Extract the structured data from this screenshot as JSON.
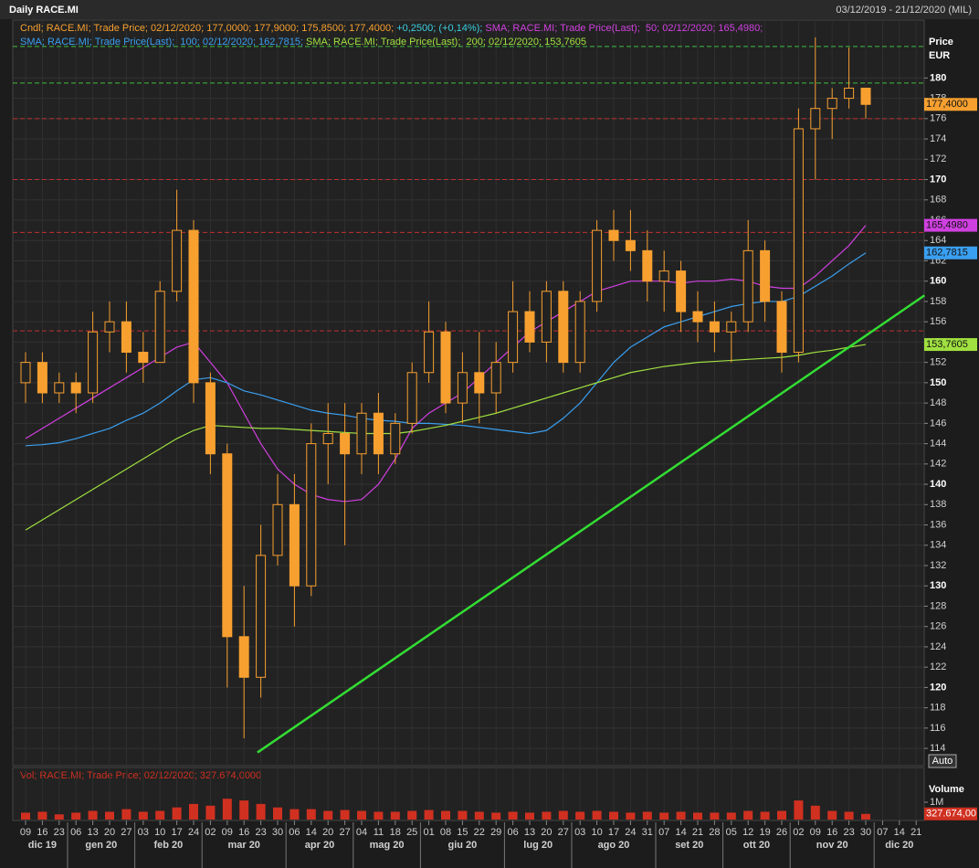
{
  "chart_data": {
    "type": "candlestick",
    "title": "Daily RACE.MI",
    "range_text": "03/12/2019 - 21/12/2020 (MIL)",
    "y_axis_label": "Price",
    "y_axis_unit": "EUR",
    "scale_button": "Auto",
    "legend": [
      [
        {
          "text": "Cndl; RACE.MI; Trade Price; 02/12/2020; 177,0000; 177,9000; 175,8500; 177,4000; ",
          "color": "#f7a030"
        },
        {
          "text": "+0,2500; (+0,14%);",
          "color": "#39d0e0"
        },
        {
          "text": " SMA; RACE.MI; Trade Price(Last);  50; 02/12/2020; 165,4980;",
          "color": "#d040e0"
        }
      ],
      [
        {
          "text": "SMA; RACE.MI; Trade Price(Last);  100; 02/12/2020; 162,7815;",
          "color": "#3a9ff0"
        },
        {
          "text": " SMA; RACE.MI; Trade Price(Last);  200; 02/12/2020; 153,7605",
          "color": "#a0e040"
        }
      ]
    ],
    "categories": [
      "09",
      "16",
      "23",
      "06",
      "13",
      "20",
      "27",
      "03",
      "10",
      "17",
      "24",
      "02",
      "09",
      "16",
      "23",
      "30",
      "06",
      "14",
      "20",
      "27",
      "04",
      "11",
      "18",
      "25",
      "01",
      "08",
      "15",
      "22",
      "29",
      "06",
      "13",
      "20",
      "27",
      "03",
      "10",
      "17",
      "24",
      "31",
      "07",
      "14",
      "21",
      "28",
      "05",
      "12",
      "19",
      "26",
      "02",
      "09",
      "16",
      "23",
      "30",
      "07",
      "14",
      "21"
    ],
    "months": [
      "dic 19",
      "gen 20",
      "feb 20",
      "mar 20",
      "apr 20",
      "mag 20",
      "giu 20",
      "lug 20",
      "ago 20",
      "set 20",
      "ott 20",
      "nov 20",
      "dic 20"
    ],
    "open": [
      150,
      152,
      149,
      150,
      149,
      155,
      156,
      153,
      152,
      159,
      165,
      150,
      143,
      125,
      121,
      133,
      138,
      130,
      144,
      145,
      143,
      147,
      143,
      146,
      151,
      155,
      148,
      151,
      149,
      152,
      157,
      154,
      159,
      152,
      158,
      165,
      164,
      163,
      160,
      161,
      157,
      156,
      155,
      156,
      163,
      158,
      153,
      175,
      177,
      178,
      179,
      null,
      null,
      null
    ],
    "high": [
      153,
      153,
      151,
      151,
      157,
      158,
      158,
      155,
      160,
      169,
      166,
      151,
      144,
      130,
      136,
      141,
      141,
      146,
      148,
      148,
      148,
      149,
      147,
      152,
      158,
      156,
      153,
      155,
      154,
      160,
      159,
      160,
      160,
      159,
      166,
      167,
      167,
      165,
      163,
      162,
      159,
      158,
      157,
      166,
      164,
      159,
      177,
      184,
      179,
      183,
      179,
      null,
      null,
      null
    ],
    "low": [
      148,
      148,
      148,
      147,
      148,
      153,
      151,
      150,
      152,
      158,
      148,
      141,
      120,
      115,
      119,
      132,
      126,
      129,
      140,
      134,
      141,
      141,
      142,
      145,
      150,
      147,
      146,
      146,
      147,
      151,
      153,
      152,
      151,
      151,
      157,
      162,
      161,
      158,
      157,
      155,
      154,
      153,
      152,
      155,
      156,
      151,
      152,
      170,
      174,
      177,
      176,
      null,
      null,
      null
    ],
    "close": [
      152,
      149,
      150,
      149,
      155,
      156,
      153,
      152,
      159,
      165,
      150,
      143,
      125,
      121,
      133,
      138,
      130,
      144,
      145,
      143,
      147,
      143,
      146,
      151,
      155,
      148,
      151,
      149,
      152,
      157,
      154,
      159,
      152,
      158,
      165,
      164,
      163,
      160,
      161,
      157,
      156,
      155,
      156,
      163,
      158,
      153,
      175,
      177,
      178,
      179,
      177.4,
      null,
      null,
      null
    ],
    "candle_color": "#f7a030",
    "series": [
      {
        "name": "SMA 50",
        "color": "#d040e0",
        "values": [
          144.5,
          145.5,
          146.5,
          147.5,
          148.5,
          149.5,
          150.5,
          151.5,
          152.5,
          153.5,
          154,
          152,
          150,
          147,
          144,
          141.5,
          140,
          139,
          138.5,
          138.3,
          138.5,
          140,
          142.5,
          145.5,
          147,
          148,
          149,
          150.5,
          152,
          153.5,
          155,
          156,
          157,
          158,
          159,
          159.5,
          160,
          160,
          160,
          159.8,
          160,
          160,
          160.2,
          160,
          159.5,
          159.3,
          159.3,
          160.5,
          162,
          163.5,
          165.498,
          null,
          null,
          null
        ]
      },
      {
        "name": "SMA 100",
        "color": "#3a9ff0",
        "values": [
          143.8,
          143.9,
          144.1,
          144.5,
          145,
          145.5,
          146.3,
          147,
          148,
          149.2,
          150.3,
          150.5,
          150,
          149.2,
          148.8,
          148.3,
          147.8,
          147.3,
          147,
          146.8,
          146.5,
          146.3,
          146.2,
          146,
          146,
          145.9,
          145.8,
          145.6,
          145.4,
          145.2,
          145,
          145.3,
          146.5,
          148,
          150,
          152,
          153.5,
          154.5,
          155.5,
          156,
          156.5,
          157,
          157.5,
          157.8,
          158,
          158,
          158.5,
          159.5,
          160.5,
          161.7,
          162.7815,
          null,
          null,
          null
        ]
      },
      {
        "name": "SMA 200",
        "color": "#a0e040",
        "values": [
          135.5,
          136.5,
          137.5,
          138.5,
          139.5,
          140.5,
          141.5,
          142.5,
          143.5,
          144.5,
          145.3,
          145.8,
          145.7,
          145.6,
          145.5,
          145.5,
          145.4,
          145.3,
          145.2,
          145.1,
          145,
          145,
          145,
          145.2,
          145.5,
          145.8,
          146.2,
          146.6,
          147,
          147.5,
          148,
          148.5,
          149,
          149.5,
          150,
          150.5,
          151,
          151.3,
          151.6,
          151.8,
          152,
          152.1,
          152.2,
          152.3,
          152.4,
          152.5,
          152.7,
          153,
          153.2,
          153.5,
          153.7605,
          null,
          null,
          null
        ]
      }
    ],
    "last_values": [
      {
        "value": 177.4,
        "label": "177,4000",
        "color": "#f7a030"
      },
      {
        "value": 165.498,
        "label": "165,4980",
        "color": "#d040e0"
      },
      {
        "value": 162.7815,
        "label": "162,7815",
        "color": "#3a9ff0"
      },
      {
        "value": 153.7605,
        "label": "153,7605",
        "color": "#a0e040"
      }
    ],
    "reference_lines": [
      {
        "value": 183.1,
        "color": "#3fbf3f"
      },
      {
        "value": 179.5,
        "color": "#3fbf3f"
      },
      {
        "value": 176,
        "color": "#c03030"
      },
      {
        "value": 170,
        "color": "#c03030"
      },
      {
        "value": 164.8,
        "color": "#c03030"
      },
      {
        "value": 155.1,
        "color": "#c03030"
      }
    ],
    "trend_line": {
      "x": [
        13.8,
        53.5
      ],
      "y": [
        113.6,
        158.6
      ],
      "color": "#33dd33"
    },
    "ylim": [
      112.3,
      185.7
    ],
    "yticks": [
      114,
      116,
      118,
      120,
      122,
      124,
      126,
      128,
      130,
      132,
      134,
      136,
      138,
      140,
      142,
      144,
      146,
      148,
      150,
      152,
      154,
      156,
      158,
      160,
      162,
      164,
      166,
      168,
      170,
      172,
      174,
      176,
      178,
      180
    ],
    "volume": {
      "legend": "Vol; RACE.MI; Trade Price; 02/12/2020; 327.674,0000",
      "title": "Volume",
      "color": "#d03020",
      "values": [
        0.4,
        0.45,
        0.3,
        0.4,
        0.5,
        0.45,
        0.6,
        0.45,
        0.5,
        0.7,
        0.9,
        0.8,
        1.2,
        1.1,
        0.9,
        0.7,
        0.6,
        0.6,
        0.5,
        0.55,
        0.5,
        0.45,
        0.45,
        0.5,
        0.55,
        0.5,
        0.5,
        0.45,
        0.4,
        0.45,
        0.4,
        0.45,
        0.5,
        0.45,
        0.5,
        0.45,
        0.4,
        0.45,
        0.4,
        0.45,
        0.4,
        0.4,
        0.4,
        0.5,
        0.45,
        0.5,
        1.1,
        0.8,
        0.5,
        0.45,
        0.327674,
        null,
        null,
        null
      ],
      "ylim": [
        0,
        3
      ],
      "yticks": [
        {
          "value": 1,
          "label": "1M"
        }
      ],
      "last_value": {
        "value": 0.327674,
        "label": "327.674,00"
      }
    }
  }
}
